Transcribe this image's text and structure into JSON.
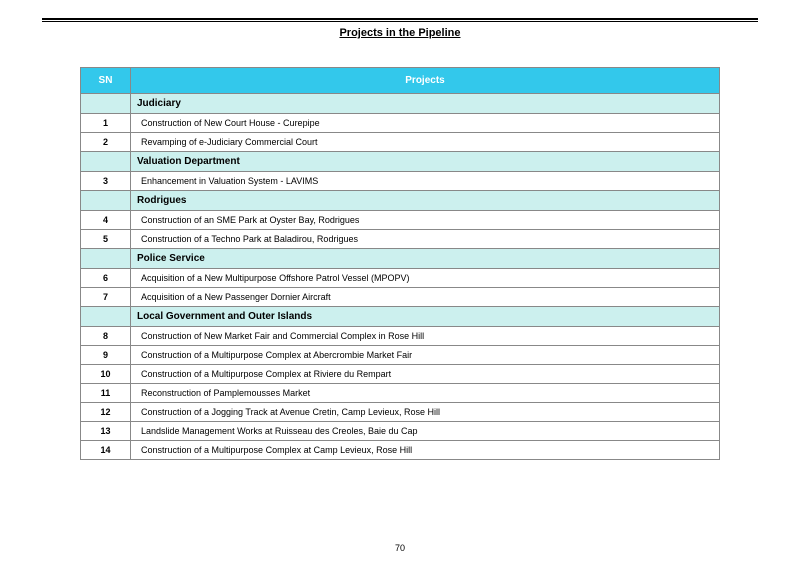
{
  "title": "Projects in the Pipeline",
  "pageNumber": "70",
  "colors": {
    "header_bg": "#33c8eb",
    "header_text": "#ffffff",
    "section_bg": "#ccf0ee",
    "border": "#888888",
    "text": "#000000"
  },
  "table": {
    "columns": {
      "sn": "SN",
      "projects": "Projects"
    },
    "sections": [
      {
        "name": "Judiciary",
        "rows": [
          {
            "sn": "1",
            "project": "Construction of New Court House - Curepipe"
          },
          {
            "sn": "2",
            "project": "Revamping of e-Judiciary Commercial Court"
          }
        ]
      },
      {
        "name": "Valuation Department",
        "rows": [
          {
            "sn": "3",
            "project": "Enhancement in Valuation System - LAVIMS"
          }
        ]
      },
      {
        "name": "Rodrigues",
        "rows": [
          {
            "sn": "4",
            "project": "Construction of an SME Park at Oyster Bay, Rodrigues"
          },
          {
            "sn": "5",
            "project": "Construction of a Techno Park at Baladirou, Rodrigues"
          }
        ]
      },
      {
        "name": "Police Service",
        "rows": [
          {
            "sn": "6",
            "project": "Acquisition of a New Multipurpose Offshore Patrol Vessel (MPOPV)"
          },
          {
            "sn": "7",
            "project": "Acquisition of a New Passenger Dornier Aircraft"
          }
        ]
      },
      {
        "name": "Local Government and Outer Islands",
        "rows": [
          {
            "sn": "8",
            "project": "Construction of New Market Fair and Commercial Complex in Rose Hill"
          },
          {
            "sn": "9",
            "project": "Construction of a Multipurpose Complex at Abercrombie Market Fair"
          },
          {
            "sn": "10",
            "project": "Construction of a Multipurpose Complex at Riviere du Rempart"
          },
          {
            "sn": "11",
            "project": "Reconstruction of Pamplemousses Market"
          },
          {
            "sn": "12",
            "project": "Construction of a Jogging Track at Avenue Cretin, Camp Levieux, Rose Hill"
          },
          {
            "sn": "13",
            "project": "Landslide Management Works at Ruisseau des Creoles, Baie du Cap"
          },
          {
            "sn": "14",
            "project": "Construction of a Multipurpose Complex at Camp Levieux, Rose Hill"
          }
        ]
      }
    ]
  }
}
